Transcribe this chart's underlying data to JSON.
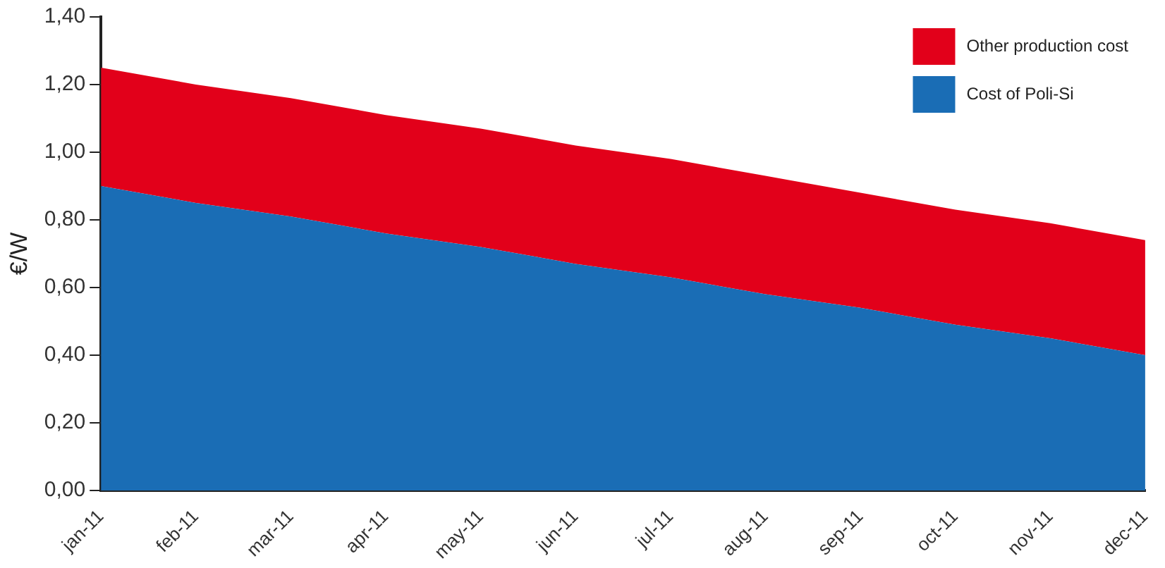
{
  "chart_data": {
    "type": "area",
    "stacked": true,
    "ylabel": "€/W",
    "categories": [
      "jan-11",
      "feb-11",
      "mar-11",
      "apr-11",
      "may-11",
      "jun-11",
      "jul-11",
      "aug-11",
      "sep-11",
      "oct-11",
      "nov-11",
      "dec-11"
    ],
    "series": [
      {
        "name": "Cost of Poli-Si",
        "color": "#1a6db5",
        "values": [
          0.9,
          0.85,
          0.81,
          0.76,
          0.72,
          0.67,
          0.63,
          0.58,
          0.54,
          0.49,
          0.45,
          0.4
        ]
      },
      {
        "name": "Other production cost",
        "color": "#e2001a",
        "values": [
          0.35,
          0.35,
          0.35,
          0.35,
          0.35,
          0.35,
          0.35,
          0.35,
          0.34,
          0.34,
          0.34,
          0.34
        ]
      }
    ],
    "ylim": [
      0,
      1.4
    ],
    "yticks": [
      {
        "value": 0,
        "label": "0,00"
      },
      {
        "value": 0.2,
        "label": "0,20"
      },
      {
        "value": 0.4,
        "label": "0,40"
      },
      {
        "value": 0.6,
        "label": "0,60"
      },
      {
        "value": 0.8,
        "label": "0,80"
      },
      {
        "value": 1.0,
        "label": "1,00"
      },
      {
        "value": 1.2,
        "label": "1,20"
      },
      {
        "value": 1.4,
        "label": "1,40"
      }
    ],
    "grid": false,
    "legend": "top right"
  }
}
